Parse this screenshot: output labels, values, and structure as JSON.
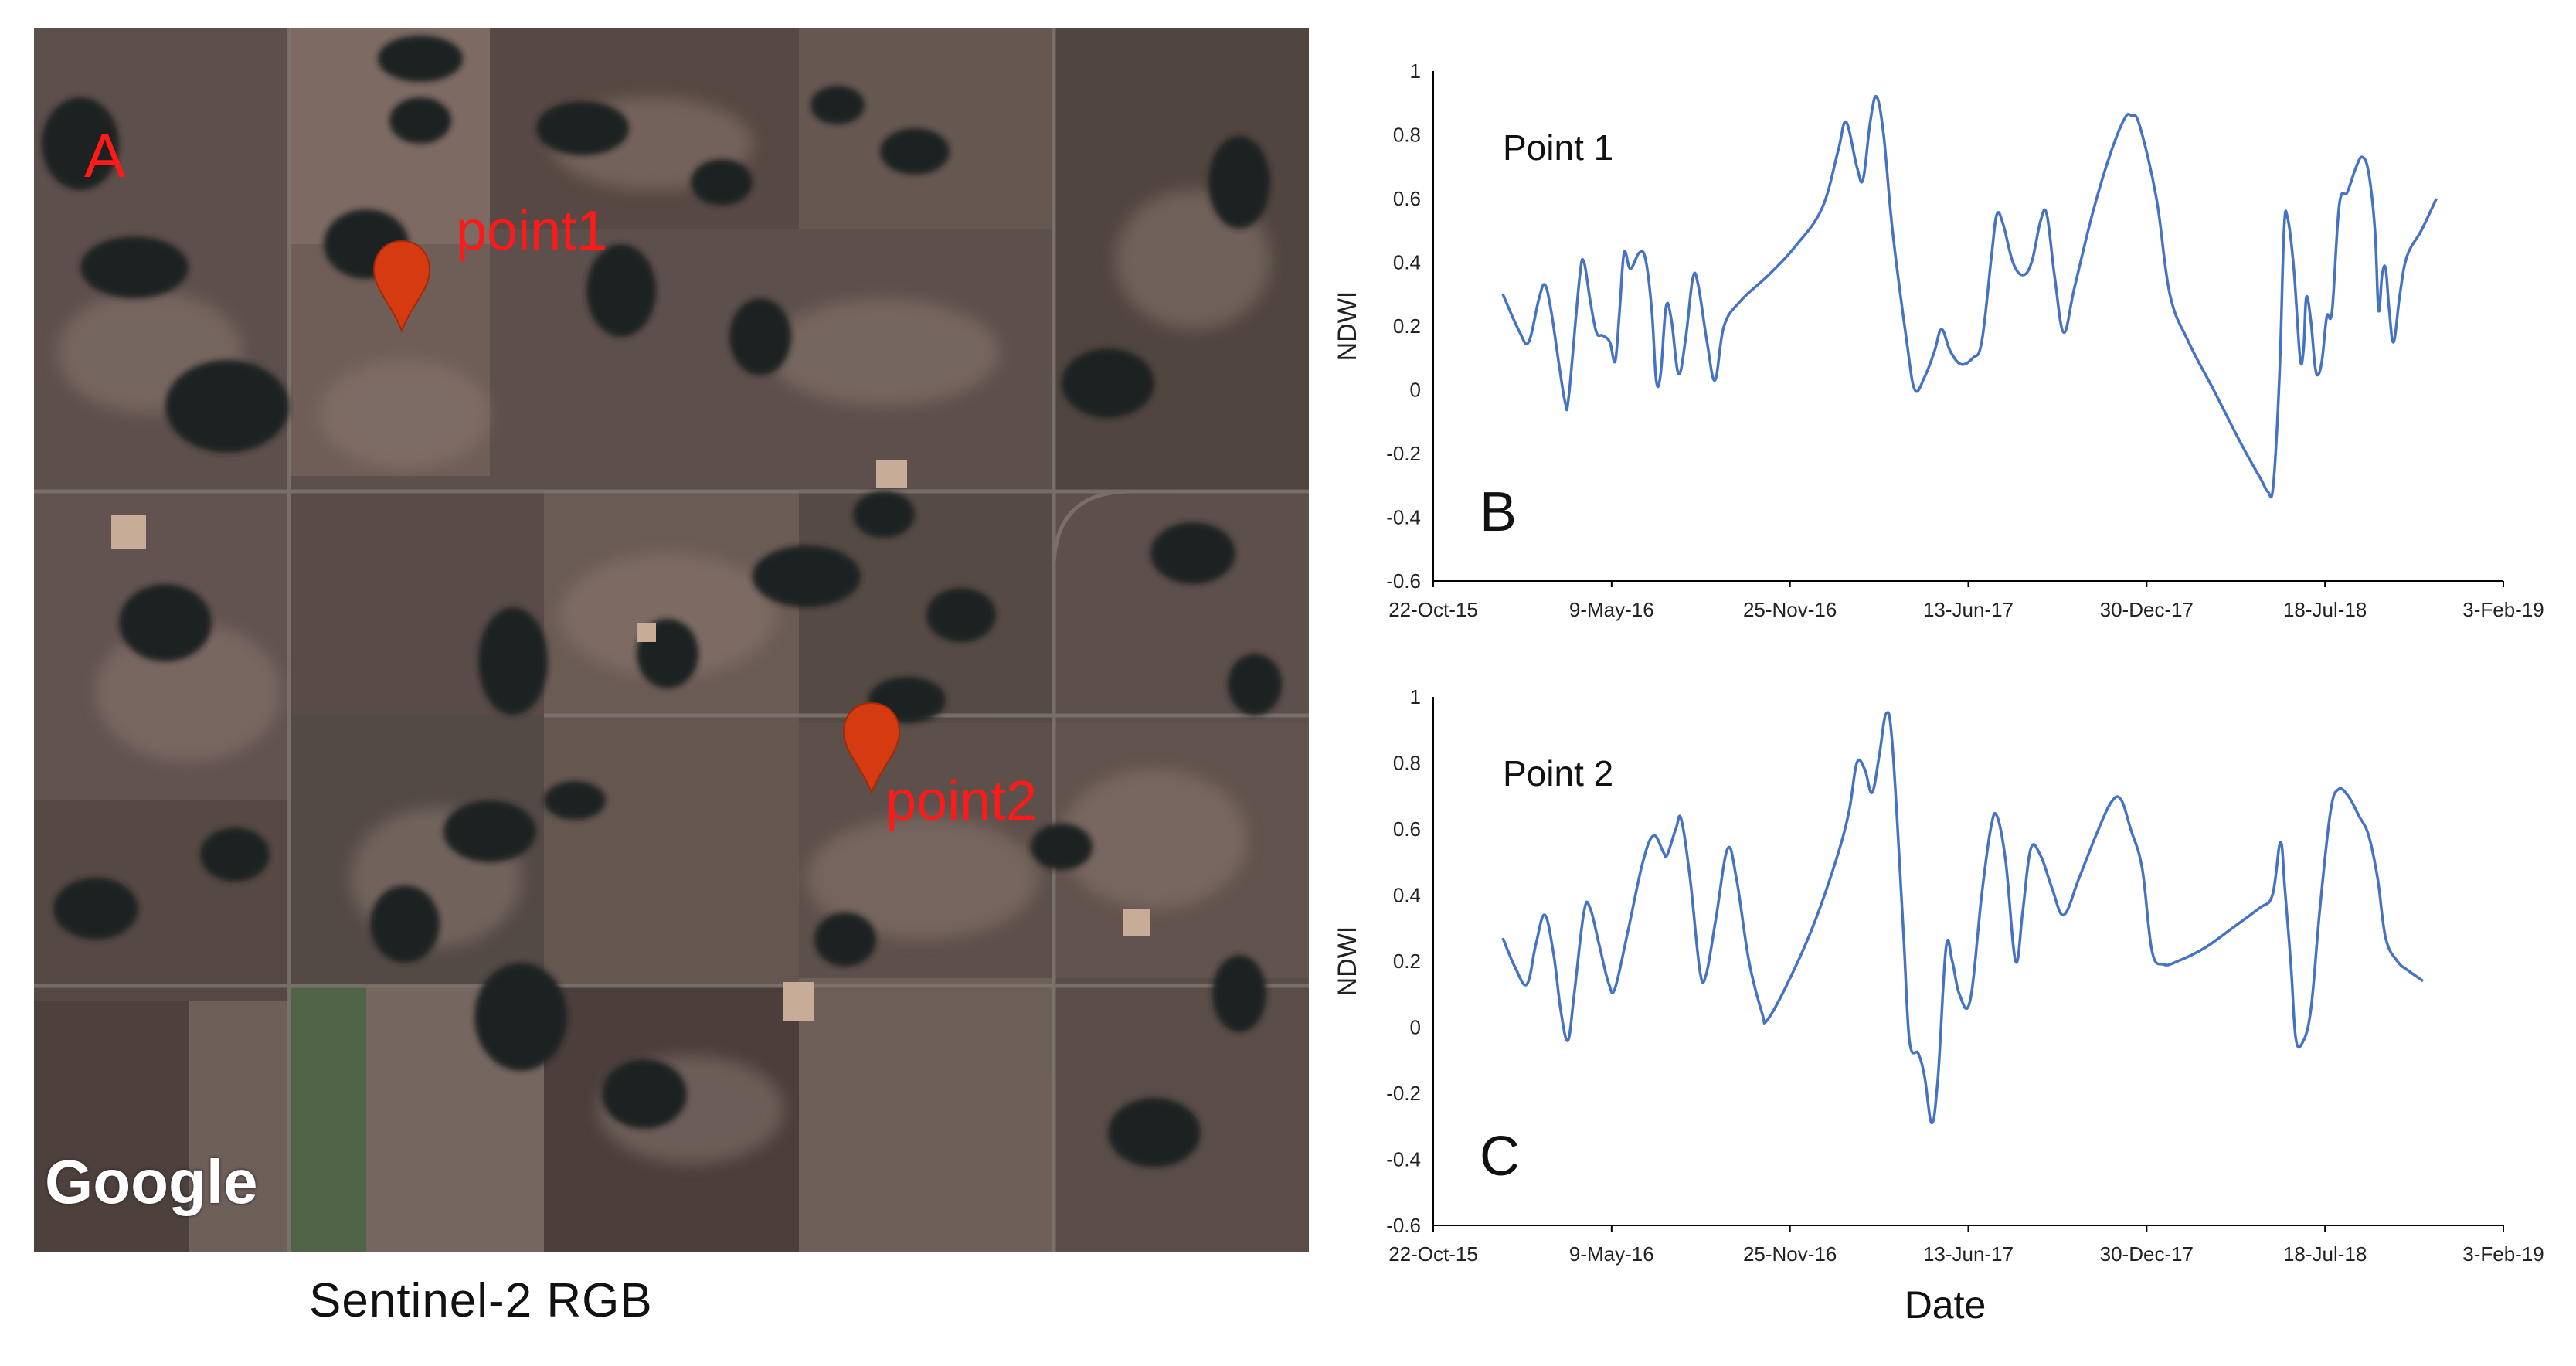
{
  "satellite": {
    "panel_label": "A",
    "markers": [
      {
        "label": "point1"
      },
      {
        "label": "point2"
      }
    ],
    "attribution": "Google",
    "caption": "Sentinel-2  RGB",
    "colors": {
      "marker": "#d63a10",
      "marker_label": "#ff1a1a",
      "field": "#5d4f4b",
      "water": "#1e2424"
    }
  },
  "chart_data": [
    {
      "type": "line",
      "panel_label": "B",
      "annotation": "Point 1",
      "ylabel": "NDWI",
      "xlabel": "",
      "ylim": [
        -0.6,
        1
      ],
      "yticks": [
        "1",
        "0.8",
        "0.6",
        "0.4",
        "0.2",
        "0",
        "-0.2",
        "-0.4",
        "-0.6"
      ],
      "xlim": [
        "2015-10-22",
        "2019-02-03"
      ],
      "xticks": [
        {
          "date": "2015-10-22",
          "label": "22-Oct-15"
        },
        {
          "date": "2016-05-09",
          "label": "9-May-16"
        },
        {
          "date": "2016-11-25",
          "label": "25-Nov-16"
        },
        {
          "date": "2017-06-13",
          "label": "13-Jun-17"
        },
        {
          "date": "2017-12-30",
          "label": "30-Dec-17"
        },
        {
          "date": "2018-07-18",
          "label": "18-Jul-18"
        },
        {
          "date": "2019-02-03",
          "label": "3-Feb-19"
        }
      ],
      "color": "#4472c4",
      "series": [
        {
          "points": [
            [
              "2016-01-08",
              0.3
            ],
            [
              "2016-01-27",
              0.18
            ],
            [
              "2016-02-06",
              0.15
            ],
            [
              "2016-02-17",
              0.28
            ],
            [
              "2016-02-24",
              0.33
            ],
            [
              "2016-03-02",
              0.25
            ],
            [
              "2016-03-11",
              0.08
            ],
            [
              "2016-03-18",
              -0.04
            ],
            [
              "2016-03-22",
              -0.02
            ],
            [
              "2016-04-03",
              0.35
            ],
            [
              "2016-04-08",
              0.4
            ],
            [
              "2016-04-15",
              0.28
            ],
            [
              "2016-04-22",
              0.18
            ],
            [
              "2016-04-29",
              0.17
            ],
            [
              "2016-05-07",
              0.15
            ],
            [
              "2016-05-13",
              0.09
            ],
            [
              "2016-05-18",
              0.25
            ],
            [
              "2016-05-23",
              0.43
            ],
            [
              "2016-05-30",
              0.38
            ],
            [
              "2016-06-09",
              0.43
            ],
            [
              "2016-06-16",
              0.41
            ],
            [
              "2016-06-23",
              0.25
            ],
            [
              "2016-06-28",
              0.03
            ],
            [
              "2016-07-03",
              0.05
            ],
            [
              "2016-07-09",
              0.26
            ],
            [
              "2016-07-15",
              0.22
            ],
            [
              "2016-07-23",
              0.05
            ],
            [
              "2016-07-31",
              0.16
            ],
            [
              "2016-08-08",
              0.35
            ],
            [
              "2016-08-14",
              0.33
            ],
            [
              "2016-08-24",
              0.15
            ],
            [
              "2016-09-02",
              0.03
            ],
            [
              "2016-09-12",
              0.2
            ],
            [
              "2016-10-01",
              0.28
            ],
            [
              "2016-11-01",
              0.36
            ],
            [
              "2016-12-01",
              0.45
            ],
            [
              "2016-12-31",
              0.57
            ],
            [
              "2017-01-18",
              0.75
            ],
            [
              "2017-01-27",
              0.84
            ],
            [
              "2017-02-08",
              0.7
            ],
            [
              "2017-02-15",
              0.66
            ],
            [
              "2017-02-23",
              0.84
            ],
            [
              "2017-03-02",
              0.92
            ],
            [
              "2017-03-10",
              0.8
            ],
            [
              "2017-03-20",
              0.5
            ],
            [
              "2017-04-05",
              0.15
            ],
            [
              "2017-04-14",
              0.0
            ],
            [
              "2017-04-25",
              0.04
            ],
            [
              "2017-05-06",
              0.12
            ],
            [
              "2017-05-14",
              0.19
            ],
            [
              "2017-05-24",
              0.12
            ],
            [
              "2017-06-05",
              0.08
            ],
            [
              "2017-06-18",
              0.1
            ],
            [
              "2017-06-28",
              0.15
            ],
            [
              "2017-07-09",
              0.42
            ],
            [
              "2017-07-15",
              0.55
            ],
            [
              "2017-07-22",
              0.52
            ],
            [
              "2017-08-02",
              0.4
            ],
            [
              "2017-08-13",
              0.36
            ],
            [
              "2017-08-23",
              0.4
            ],
            [
              "2017-09-02",
              0.53
            ],
            [
              "2017-09-09",
              0.55
            ],
            [
              "2017-09-18",
              0.35
            ],
            [
              "2017-09-28",
              0.18
            ],
            [
              "2017-10-10",
              0.32
            ],
            [
              "2017-10-30",
              0.55
            ],
            [
              "2017-11-18",
              0.73
            ],
            [
              "2017-12-05",
              0.85
            ],
            [
              "2017-12-13",
              0.86
            ],
            [
              "2017-12-22",
              0.83
            ],
            [
              "2018-01-10",
              0.6
            ],
            [
              "2018-01-25",
              0.3
            ],
            [
              "2018-02-15",
              0.15
            ],
            [
              "2018-03-15",
              0.0
            ],
            [
              "2018-04-15",
              -0.17
            ],
            [
              "2018-05-07",
              -0.28
            ],
            [
              "2018-05-15",
              -0.32
            ],
            [
              "2018-05-21",
              -0.3
            ],
            [
              "2018-05-28",
              0.05
            ],
            [
              "2018-06-02",
              0.5
            ],
            [
              "2018-06-06",
              0.54
            ],
            [
              "2018-06-13",
              0.38
            ],
            [
              "2018-06-20",
              0.1
            ],
            [
              "2018-06-24",
              0.13
            ],
            [
              "2018-06-27",
              0.29
            ],
            [
              "2018-07-02",
              0.22
            ],
            [
              "2018-07-07",
              0.07
            ],
            [
              "2018-07-11",
              0.05
            ],
            [
              "2018-07-15",
              0.1
            ],
            [
              "2018-07-20",
              0.23
            ],
            [
              "2018-07-26",
              0.25
            ],
            [
              "2018-08-03",
              0.58
            ],
            [
              "2018-08-12",
              0.62
            ],
            [
              "2018-08-22",
              0.7
            ],
            [
              "2018-08-29",
              0.73
            ],
            [
              "2018-09-05",
              0.68
            ],
            [
              "2018-09-12",
              0.5
            ],
            [
              "2018-09-16",
              0.25
            ],
            [
              "2018-09-20",
              0.36
            ],
            [
              "2018-09-24",
              0.38
            ],
            [
              "2018-09-28",
              0.25
            ],
            [
              "2018-10-03",
              0.15
            ],
            [
              "2018-10-10",
              0.3
            ],
            [
              "2018-10-18",
              0.42
            ],
            [
              "2018-11-03",
              0.5
            ],
            [
              "2018-11-20",
              0.6
            ]
          ]
        }
      ]
    },
    {
      "type": "line",
      "panel_label": "C",
      "annotation": "Point 2",
      "ylabel": "NDWI",
      "xlabel": "Date",
      "ylim": [
        -0.6,
        1
      ],
      "yticks": [
        "1",
        "0.8",
        "0.6",
        "0.4",
        "0.2",
        "0",
        "-0.2",
        "-0.4",
        "-0.6"
      ],
      "xlim": [
        "2015-10-22",
        "2019-02-03"
      ],
      "xticks": [
        {
          "date": "2015-10-22",
          "label": "22-Oct-15"
        },
        {
          "date": "2016-05-09",
          "label": "9-May-16"
        },
        {
          "date": "2016-11-25",
          "label": "25-Nov-16"
        },
        {
          "date": "2017-06-13",
          "label": "13-Jun-17"
        },
        {
          "date": "2017-12-30",
          "label": "30-Dec-17"
        },
        {
          "date": "2018-07-18",
          "label": "18-Jul-18"
        },
        {
          "date": "2019-02-03",
          "label": "3-Feb-19"
        }
      ],
      "color": "#4472c4",
      "series": [
        {
          "points": [
            [
              "2016-01-08",
              0.27
            ],
            [
              "2016-01-22",
              0.18
            ],
            [
              "2016-02-04",
              0.13
            ],
            [
              "2016-02-14",
              0.25
            ],
            [
              "2016-02-24",
              0.34
            ],
            [
              "2016-03-05",
              0.22
            ],
            [
              "2016-03-13",
              0.05
            ],
            [
              "2016-03-21",
              -0.04
            ],
            [
              "2016-03-28",
              0.1
            ],
            [
              "2016-04-08",
              0.35
            ],
            [
              "2016-04-15",
              0.36
            ],
            [
              "2016-04-25",
              0.25
            ],
            [
              "2016-05-06",
              0.13
            ],
            [
              "2016-05-13",
              0.12
            ],
            [
              "2016-05-28",
              0.3
            ],
            [
              "2016-06-13",
              0.5
            ],
            [
              "2016-06-25",
              0.58
            ],
            [
              "2016-07-06",
              0.53
            ],
            [
              "2016-07-10",
              0.52
            ],
            [
              "2016-07-20",
              0.6
            ],
            [
              "2016-07-26",
              0.63
            ],
            [
              "2016-08-05",
              0.45
            ],
            [
              "2016-08-16",
              0.17
            ],
            [
              "2016-08-23",
              0.16
            ],
            [
              "2016-09-03",
              0.33
            ],
            [
              "2016-09-16",
              0.54
            ],
            [
              "2016-09-26",
              0.45
            ],
            [
              "2016-10-10",
              0.2
            ],
            [
              "2016-10-25",
              0.04
            ],
            [
              "2016-10-30",
              0.02
            ],
            [
              "2016-11-20",
              0.12
            ],
            [
              "2016-12-20",
              0.3
            ],
            [
              "2017-01-15",
              0.5
            ],
            [
              "2017-01-30",
              0.65
            ],
            [
              "2017-02-08",
              0.8
            ],
            [
              "2017-02-17",
              0.78
            ],
            [
              "2017-02-25",
              0.71
            ],
            [
              "2017-03-05",
              0.82
            ],
            [
              "2017-03-13",
              0.95
            ],
            [
              "2017-03-20",
              0.85
            ],
            [
              "2017-04-01",
              0.3
            ],
            [
              "2017-04-08",
              -0.04
            ],
            [
              "2017-04-18",
              -0.08
            ],
            [
              "2017-04-25",
              -0.15
            ],
            [
              "2017-05-03",
              -0.29
            ],
            [
              "2017-05-10",
              -0.15
            ],
            [
              "2017-05-19",
              0.24
            ],
            [
              "2017-05-26",
              0.2
            ],
            [
              "2017-06-03",
              0.1
            ],
            [
              "2017-06-15",
              0.08
            ],
            [
              "2017-06-28",
              0.4
            ],
            [
              "2017-07-08",
              0.6
            ],
            [
              "2017-07-15",
              0.64
            ],
            [
              "2017-07-25",
              0.5
            ],
            [
              "2017-08-05",
              0.2
            ],
            [
              "2017-08-13",
              0.35
            ],
            [
              "2017-08-22",
              0.54
            ],
            [
              "2017-09-02",
              0.52
            ],
            [
              "2017-09-15",
              0.42
            ],
            [
              "2017-09-28",
              0.34
            ],
            [
              "2017-10-15",
              0.45
            ],
            [
              "2017-11-03",
              0.58
            ],
            [
              "2017-11-20",
              0.68
            ],
            [
              "2017-12-01",
              0.69
            ],
            [
              "2017-12-12",
              0.6
            ],
            [
              "2017-12-25",
              0.48
            ],
            [
              "2018-01-05",
              0.23
            ],
            [
              "2018-01-18",
              0.19
            ],
            [
              "2018-02-03",
              0.2
            ],
            [
              "2018-03-05",
              0.24
            ],
            [
              "2018-04-05",
              0.3
            ],
            [
              "2018-05-05",
              0.36
            ],
            [
              "2018-05-20",
              0.4
            ],
            [
              "2018-05-29",
              0.56
            ],
            [
              "2018-06-03",
              0.42
            ],
            [
              "2018-06-10",
              0.18
            ],
            [
              "2018-06-15",
              -0.03
            ],
            [
              "2018-06-22",
              -0.05
            ],
            [
              "2018-07-02",
              0.05
            ],
            [
              "2018-07-12",
              0.35
            ],
            [
              "2018-07-24",
              0.65
            ],
            [
              "2018-08-02",
              0.72
            ],
            [
              "2018-08-13",
              0.7
            ],
            [
              "2018-08-25",
              0.64
            ],
            [
              "2018-09-05",
              0.58
            ],
            [
              "2018-09-15",
              0.45
            ],
            [
              "2018-09-24",
              0.27
            ],
            [
              "2018-10-07",
              0.2
            ],
            [
              "2018-10-20",
              0.17
            ],
            [
              "2018-11-05",
              0.14
            ]
          ]
        }
      ]
    }
  ]
}
